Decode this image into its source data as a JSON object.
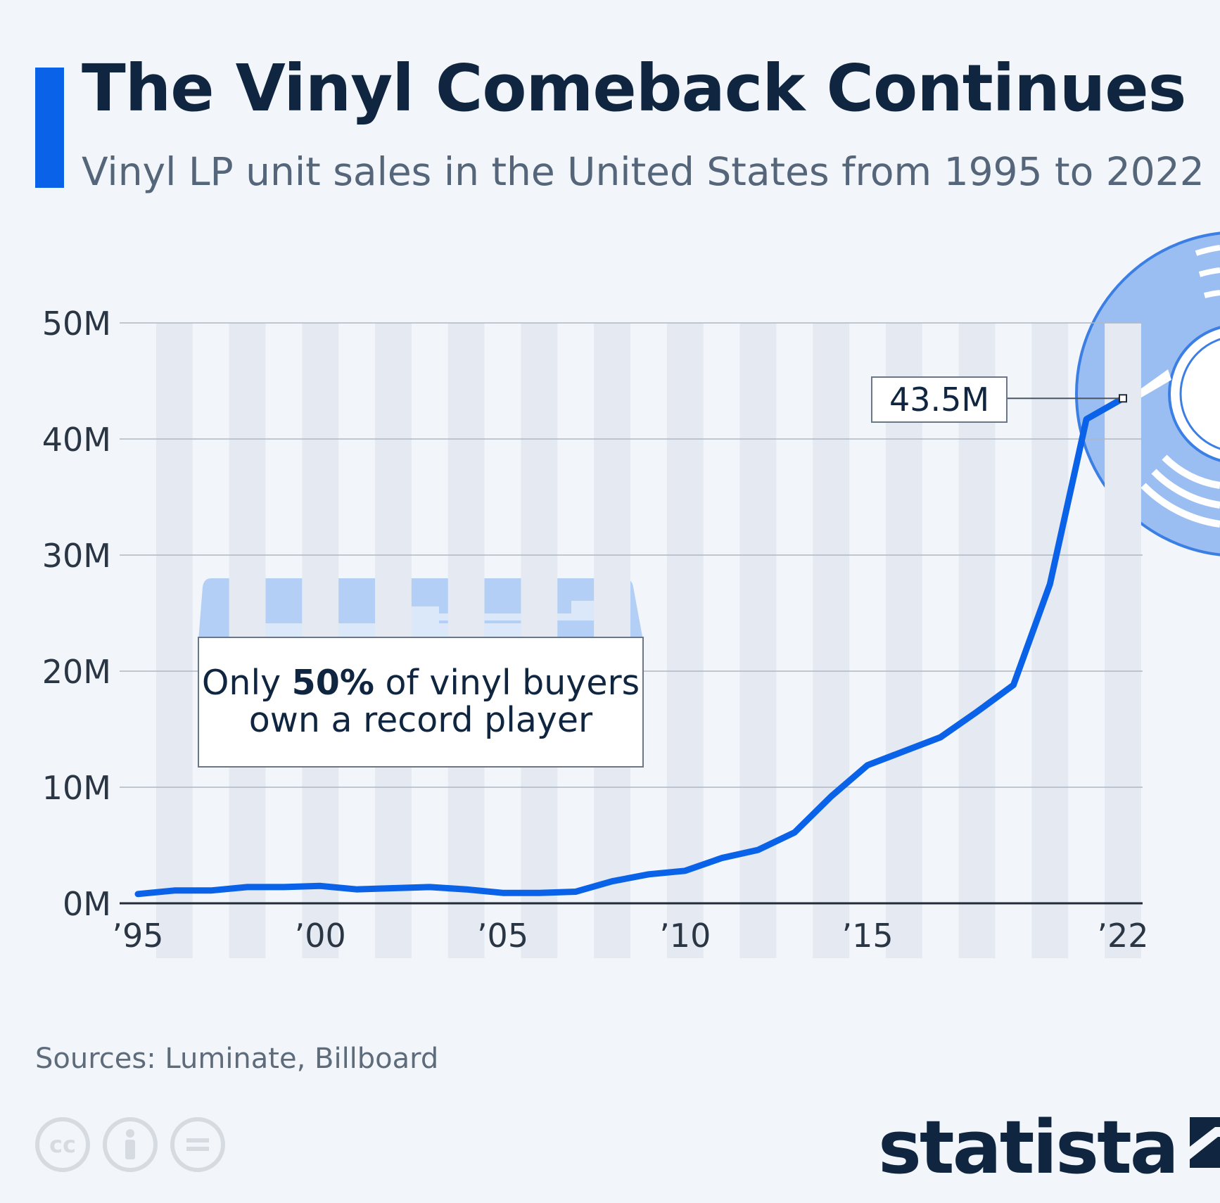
{
  "header": {
    "title": "The Vinyl Comeback Continues",
    "subtitle": "Vinyl LP unit sales in the United States from 1995 to 2022"
  },
  "annotation": {
    "text_before": "Only ",
    "highlight": "50%",
    "text_after_line1": " of vinyl buyers",
    "line2": "own a record player"
  },
  "callout": {
    "label": "43.5M"
  },
  "footer": {
    "source": "Sources: Luminate, Billboard",
    "logo": "statista",
    "license_icons": [
      "cc-icon",
      "attribution-icon",
      "no-derivatives-icon"
    ]
  },
  "colors": {
    "accent": "#0a62e9",
    "line": "#0a62e9",
    "title": "#0f2540",
    "illustration": "#b3cff5"
  },
  "chart_data": {
    "type": "line",
    "title": "The Vinyl Comeback Continues",
    "subtitle": "Vinyl LP unit sales in the United States from 1995 to 2022",
    "x": [
      1995,
      1996,
      1997,
      1998,
      1999,
      2000,
      2001,
      2002,
      2003,
      2004,
      2005,
      2006,
      2007,
      2008,
      2009,
      2010,
      2011,
      2012,
      2013,
      2014,
      2015,
      2016,
      2017,
      2018,
      2019,
      2020,
      2021,
      2022
    ],
    "series": [
      {
        "values": [
          0.8,
          1.1,
          1.1,
          1.4,
          1.4,
          1.5,
          1.2,
          1.3,
          1.4,
          1.2,
          0.9,
          0.9,
          1.0,
          1.9,
          2.5,
          2.8,
          3.9,
          4.6,
          6.1,
          9.2,
          11.9,
          13.1,
          14.3,
          16.5,
          18.8,
          27.5,
          41.7,
          43.5
        ]
      }
    ],
    "x_tick_labels": [
      "’95",
      "’00",
      "’05",
      "’10",
      "’15",
      "’22"
    ],
    "x_tick_values": [
      1995,
      2000,
      2005,
      2010,
      2015,
      2022
    ],
    "y_tick_labels": [
      "0M",
      "10M",
      "20M",
      "30M",
      "40M",
      "50M"
    ],
    "y_tick_values": [
      0,
      10,
      20,
      30,
      40,
      50
    ],
    "ylim": [
      0,
      50
    ],
    "xlim": [
      1995,
      2022
    ],
    "unit": "M",
    "grid": true,
    "legend": "none",
    "highlight_point": {
      "x": 2022,
      "label": "43.5M"
    }
  }
}
